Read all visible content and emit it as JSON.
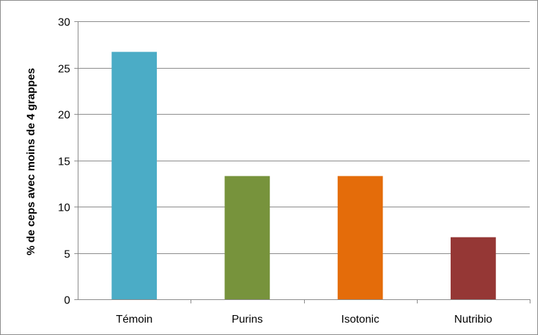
{
  "chart_data": {
    "type": "bar",
    "title": "",
    "xlabel": "",
    "ylabel": "% de ceps avec moins de 4 grappes",
    "categories": [
      "Témoin",
      "Purins",
      "Isotonic",
      "Nutribio"
    ],
    "values": [
      26.7,
      13.3,
      13.3,
      6.7
    ],
    "colors": [
      "#4BACC6",
      "#77933C",
      "#E46C0A",
      "#953735"
    ],
    "ylim": [
      0,
      30
    ],
    "yticks": [
      0,
      5,
      10,
      15,
      20,
      25,
      30
    ],
    "grid": true,
    "legend": "none"
  }
}
